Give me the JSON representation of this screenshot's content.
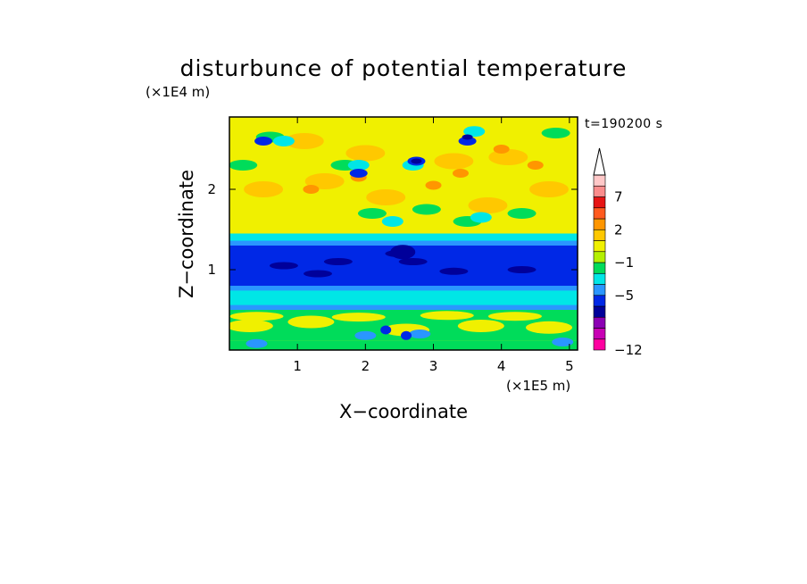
{
  "chart_data": {
    "type": "heatmap",
    "title": "disturbunce of potential temperature",
    "xlabel": "X−coordinate",
    "ylabel": "Z−coordinate",
    "x_unit": "(×1E5 m)",
    "y_unit": "(×1E4 m)",
    "time_label": "t=190200 s",
    "xlim": [
      0,
      5.12
    ],
    "ylim": [
      0,
      2.9
    ],
    "x_ticks": [
      "1",
      "2",
      "3",
      "4",
      "5"
    ],
    "x_tick_values": [
      1,
      2,
      3,
      4,
      5
    ],
    "y_ticks": [
      "1",
      "2"
    ],
    "y_tick_values": [
      1,
      2
    ],
    "colorbar": {
      "tick_labels": [
        "7",
        "2",
        "−1",
        "−5",
        "−12"
      ],
      "tick_values": [
        7,
        2,
        -1,
        -5,
        -12
      ],
      "extend": "max",
      "colors": [
        "#ff00a0",
        "#c800b4",
        "#8c00b4",
        "#00009a",
        "#0028e6",
        "#2a96ff",
        "#00e6e6",
        "#00dc5a",
        "#b4f000",
        "#f0f000",
        "#ffc800",
        "#ff9600",
        "#ff5a1e",
        "#e61414",
        "#fa8c8c",
        "#ffc8c8"
      ]
    },
    "bands": [
      {
        "z": [
          0.0,
          0.12
        ],
        "description": "mixed green / yellow near surface",
        "value": 1
      },
      {
        "z": [
          0.12,
          0.5
        ],
        "description": "yellow-green with blue pockets",
        "value": 1
      },
      {
        "z": [
          0.5,
          0.8
        ],
        "description": "cyan / light blue",
        "value": -2
      },
      {
        "z": [
          0.8,
          1.3
        ],
        "description": "blue with dark-blue core",
        "value": -5
      },
      {
        "z": [
          1.3,
          1.45
        ],
        "description": "cyan / light blue",
        "value": -2
      },
      {
        "z": [
          1.45,
          2.9
        ],
        "description": "yellow / orange with wave patterns",
        "value": 2
      }
    ]
  }
}
